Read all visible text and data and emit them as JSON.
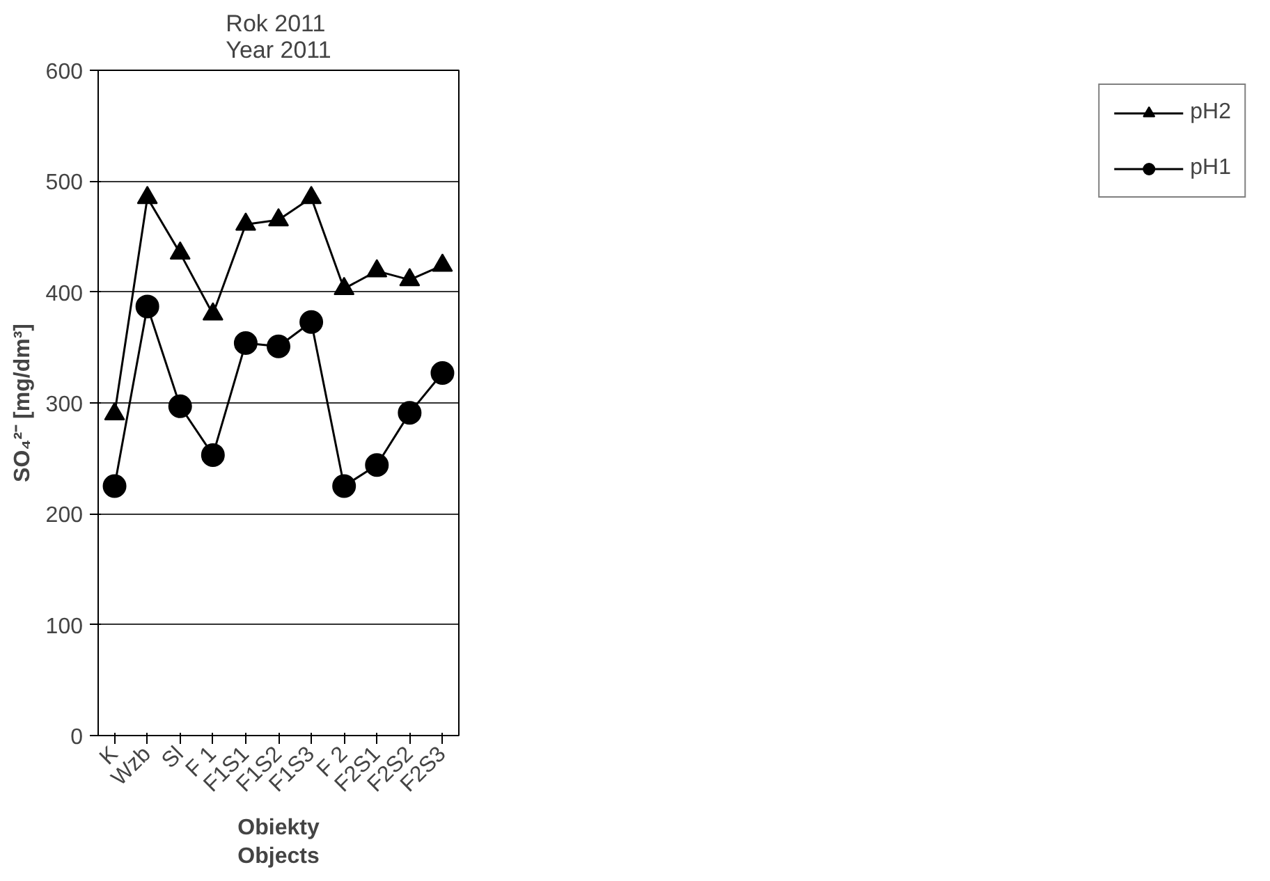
{
  "chart_data": {
    "type": "line",
    "title": "Rok 2011\nYear 2011",
    "xlabel": "Obiekty\nObjects",
    "ylabel": "SO₄²⁻ [mg/dm³]",
    "categories": [
      "K",
      "Wzb",
      "Sl",
      "F 1",
      "F1S1",
      "F1S2",
      "F1S3",
      "F 2",
      "F2S1",
      "F2S2",
      "F2S3"
    ],
    "series": [
      {
        "name": "pH2",
        "color": "#000000",
        "marker": "triangle",
        "values": [
          290,
          485,
          435,
          380,
          461,
          465,
          485,
          403,
          419,
          411,
          424
        ]
      },
      {
        "name": "pH1",
        "color": "#000000",
        "marker": "circle",
        "values": [
          225,
          387,
          297,
          253,
          354,
          351,
          373,
          225,
          244,
          291,
          327
        ]
      }
    ],
    "ylim": [
      0,
      600
    ],
    "yticks": [
      0,
      100,
      200,
      300,
      400,
      500,
      600
    ],
    "grid": "y",
    "legend": "right",
    "line_style": "solid"
  }
}
